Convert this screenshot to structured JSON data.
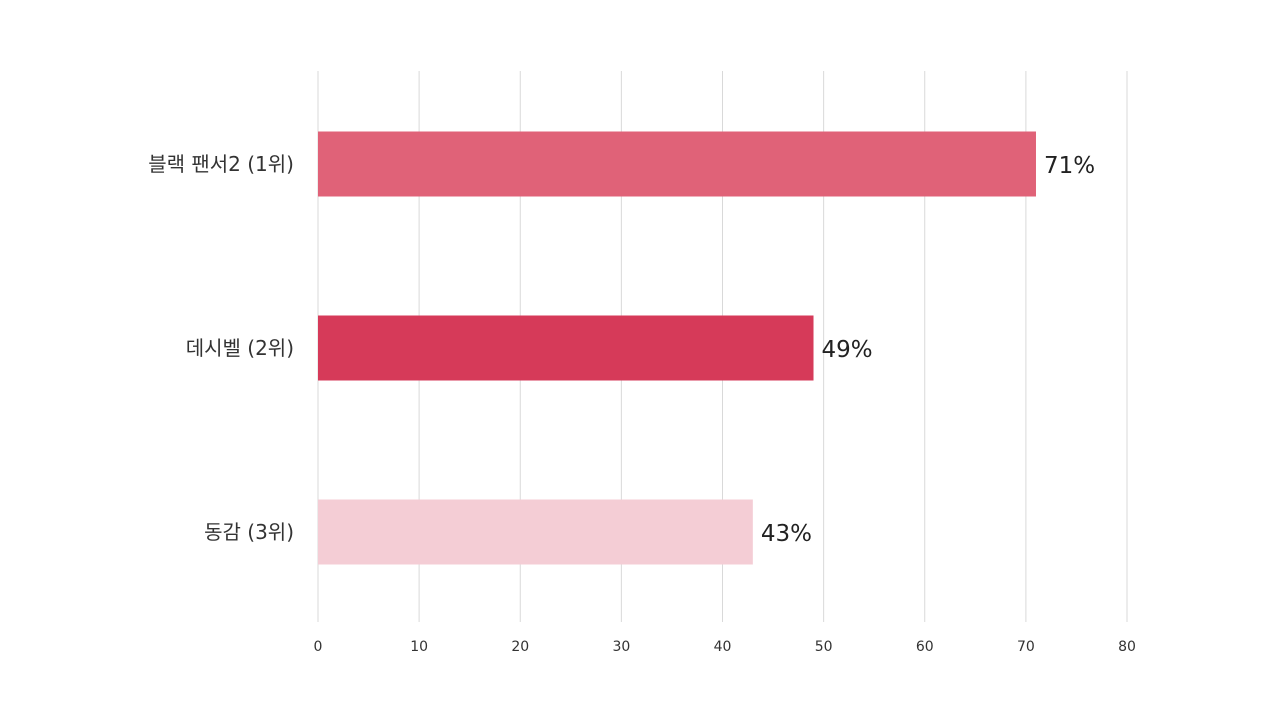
{
  "chart_data": {
    "type": "bar",
    "orientation": "horizontal",
    "categories": [
      "블랙 팬서2 (1위)",
      "데시벨 (2위)",
      "동감 (3위)"
    ],
    "values": [
      71,
      49,
      43
    ],
    "data_labels": [
      "71%",
      "49%",
      "43%"
    ],
    "colors": [
      "#e06278",
      "#d63a59",
      "#f4cdd5"
    ],
    "xlim": [
      0,
      80
    ],
    "x_ticks": [
      0,
      10,
      20,
      30,
      40,
      50,
      60,
      70,
      80
    ],
    "x_tick_labels": [
      "0",
      "10",
      "20",
      "30",
      "40",
      "50",
      "60",
      "70",
      "80"
    ],
    "grid": true,
    "legend": "none"
  }
}
